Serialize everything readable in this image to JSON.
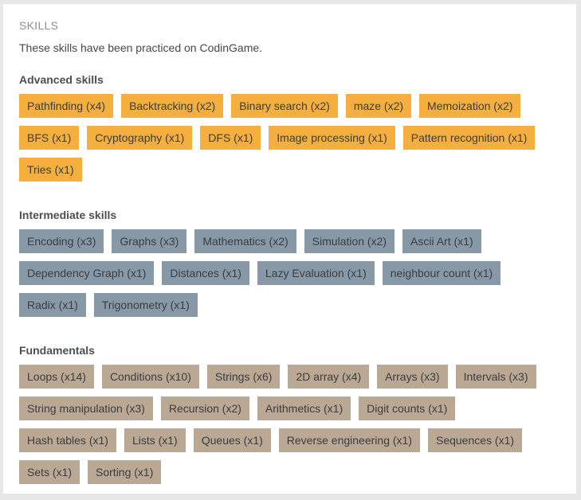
{
  "header": {
    "title": "SKILLS",
    "description": "These skills have been practiced on CodinGame."
  },
  "colors": {
    "advanced": "#f4af3f",
    "intermediate": "#8799a6",
    "fundamentals": "#bba894"
  },
  "sections": [
    {
      "key": "advanced",
      "title": "Advanced skills",
      "tags": [
        "Pathfinding (x4)",
        "Backtracking (x2)",
        "Binary search (x2)",
        "maze (x2)",
        "Memoization (x2)",
        "BFS (x1)",
        "Cryptography (x1)",
        "DFS (x1)",
        "Image processing (x1)",
        "Pattern recognition (x1)",
        "Tries (x1)"
      ]
    },
    {
      "key": "intermediate",
      "title": "Intermediate skills",
      "tags": [
        "Encoding (x3)",
        "Graphs (x3)",
        "Mathematics (x2)",
        "Simulation (x2)",
        "Ascii Art (x1)",
        "Dependency Graph (x1)",
        "Distances (x1)",
        "Lazy Evaluation (x1)",
        "neighbour count (x1)",
        "Radix (x1)",
        "Trigonometry (x1)"
      ]
    },
    {
      "key": "fundamentals",
      "title": "Fundamentals",
      "tags": [
        "Loops (x14)",
        "Conditions (x10)",
        "Strings (x6)",
        "2D array (x4)",
        "Arrays (x3)",
        "Intervals (x3)",
        "String manipulation (x3)",
        "Recursion (x2)",
        "Arithmetics (x1)",
        "Digit counts (x1)",
        "Hash tables (x1)",
        "Lists (x1)",
        "Queues (x1)",
        "Reverse engineering (x1)",
        "Sequences (x1)",
        "Sets (x1)",
        "Sorting (x1)"
      ]
    }
  ]
}
